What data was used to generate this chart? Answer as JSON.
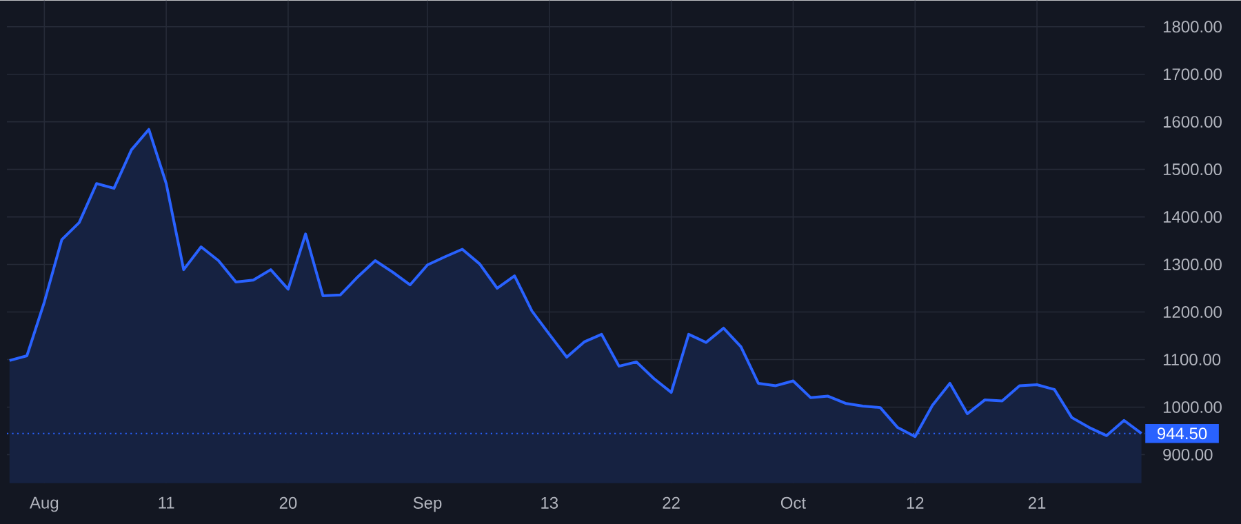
{
  "chart_data": {
    "type": "area",
    "categories": [
      null,
      null,
      "Aug",
      null,
      null,
      null,
      null,
      null,
      null,
      "11",
      null,
      null,
      null,
      null,
      null,
      null,
      "20",
      null,
      null,
      null,
      null,
      null,
      null,
      null,
      "Sep",
      null,
      null,
      null,
      null,
      null,
      null,
      "13",
      null,
      null,
      null,
      null,
      null,
      null,
      "22",
      null,
      null,
      null,
      null,
      null,
      null,
      "Oct",
      null,
      null,
      null,
      null,
      null,
      null,
      "12",
      null,
      null,
      null,
      null,
      null,
      null,
      "21",
      null,
      null,
      null,
      null,
      null,
      null
    ],
    "series": [
      {
        "color": "#2962ff",
        "values": [
          1098,
          1108,
          1221,
          1352,
          1388,
          1470,
          1460,
          1541,
          1584,
          1470,
          1289,
          1337,
          1308,
          1263,
          1267,
          1289,
          1248,
          1364,
          1234,
          1236,
          1274,
          1308,
          1284,
          1257,
          1299,
          1316,
          1332,
          1301,
          1250,
          1276,
          1202,
          1153,
          1105,
          1137,
          1153,
          1086,
          1095,
          1060,
          1031,
          1153,
          1136,
          1166,
          1127,
          1050,
          1045,
          1055,
          1020,
          1023,
          1008,
          1002,
          999,
          957,
          938,
          1004,
          1050,
          986,
          1015,
          1013,
          1045,
          1047,
          1037,
          978,
          957,
          940,
          972,
          944.5
        ]
      }
    ],
    "ylim": [
      840,
      1855
    ],
    "yticks": [
      {
        "value": 900,
        "label": "900.00"
      },
      {
        "value": 1000,
        "label": "1000.00"
      },
      {
        "value": 1100,
        "label": "1100.00"
      },
      {
        "value": 1200,
        "label": "1200.00"
      },
      {
        "value": 1300,
        "label": "1300.00"
      },
      {
        "value": 1400,
        "label": "1400.00"
      },
      {
        "value": 1500,
        "label": "1500.00"
      },
      {
        "value": 1600,
        "label": "1600.00"
      },
      {
        "value": 1700,
        "label": "1700.00"
      },
      {
        "value": 1800,
        "label": "1800.00"
      }
    ],
    "ref_lines": [
      {
        "axis": "y",
        "value": 944.5,
        "label": "944.50",
        "color": "#2962ff",
        "line_style": "dotted"
      }
    ],
    "grid": true
  }
}
